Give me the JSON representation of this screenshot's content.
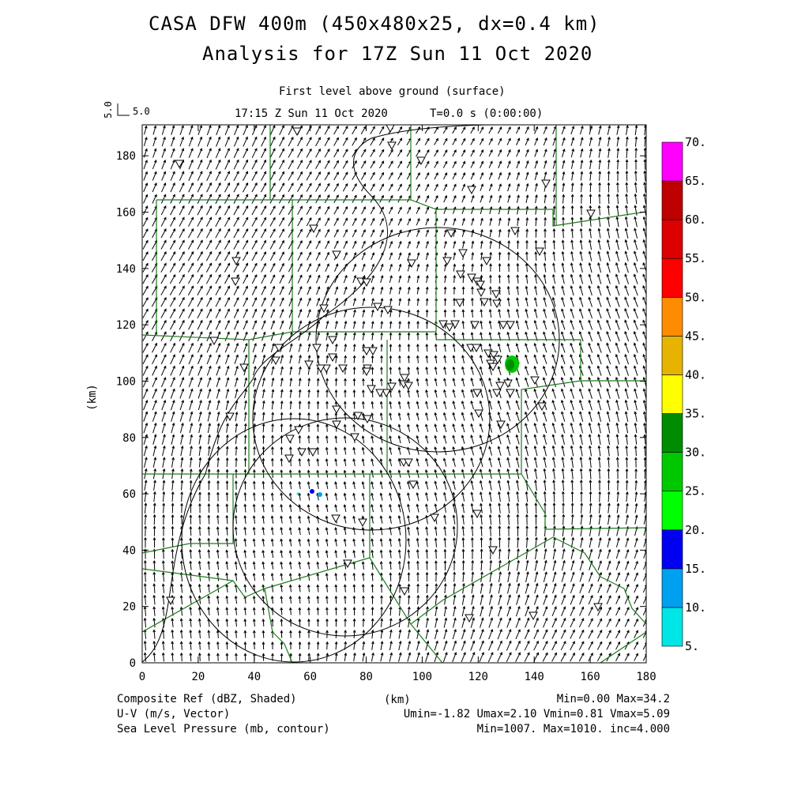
{
  "header": {
    "title_line1": "CASA DFW 400m (450x480x25, dx=0.4 km)",
    "title_line2": "Analysis for 17Z Sun 11 Oct 2020",
    "level": "First level above ground (surface)",
    "time": "17:15 Z Sun 11 Oct 2020",
    "elapsed": "T=0.0 s (0:00:00)",
    "ref_vector_label": "5.0"
  },
  "axes": {
    "x_ticks": [
      "0",
      "20",
      "40",
      "60",
      "80",
      "100",
      "120",
      "140",
      "160",
      "180"
    ],
    "y_ticks": [
      "0",
      "20",
      "40",
      "60",
      "80",
      "100",
      "120",
      "140",
      "160",
      "180"
    ],
    "x_unit": "(km)",
    "y_unit": "(km)",
    "x_range": [
      0,
      180
    ],
    "y_range": [
      0,
      191
    ]
  },
  "colorbar": {
    "labels": [
      "5.",
      "10.",
      "15.",
      "20.",
      "25.",
      "30.",
      "35.",
      "40.",
      "45.",
      "50.",
      "55.",
      "60.",
      "65.",
      "70."
    ],
    "colors": [
      "#00e5e5",
      "#00a0f0",
      "#0000f0",
      "#00ff00",
      "#00c800",
      "#008c00",
      "#ffff00",
      "#e6b400",
      "#ff8c00",
      "#ff0000",
      "#dc0000",
      "#be0000",
      "#ff00ff"
    ]
  },
  "footer": {
    "field1": "Composite Ref (dBZ, Shaded)",
    "field2": "U-V (m/s, Vector)",
    "field3": "Sea Level Pressure (mb, contour)",
    "xunit": "(km)",
    "stats1": "Min=0.00 Max=34.2",
    "stats2": "Umin=-1.82 Umax=2.10 Vmin=0.81 Vmax=5.09",
    "stats3": "Min=1007. Max=1010. inc=4.000"
  }
}
